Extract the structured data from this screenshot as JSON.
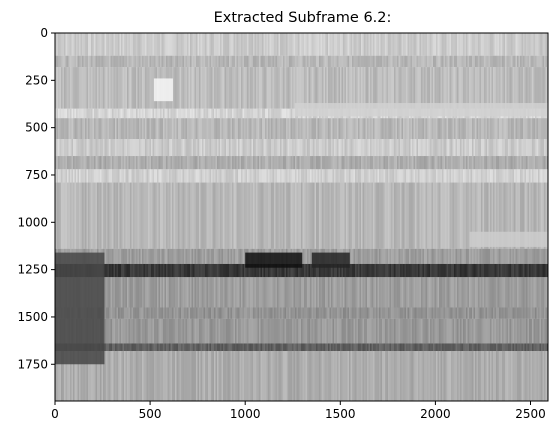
{
  "chart_data": {
    "type": "heatmap",
    "title": "Extracted Subframe 6.2:",
    "colormap": "gray",
    "xlim": [
      0,
      2592
    ],
    "ylim": [
      1944,
      0
    ],
    "x_ticks": [
      0,
      500,
      1000,
      1500,
      2000,
      2500
    ],
    "y_ticks": [
      0,
      250,
      500,
      750,
      1000,
      1250,
      1500,
      1750
    ],
    "bands": [
      {
        "y0": 0,
        "y1": 120,
        "gray": 0.8
      },
      {
        "y0": 120,
        "y1": 180,
        "gray": 0.72
      },
      {
        "y0": 180,
        "y1": 400,
        "gray": 0.74
      },
      {
        "y0": 400,
        "y1": 450,
        "gray": 0.84
      },
      {
        "y0": 450,
        "y1": 560,
        "gray": 0.72
      },
      {
        "y0": 560,
        "y1": 650,
        "gray": 0.8
      },
      {
        "y0": 650,
        "y1": 720,
        "gray": 0.68
      },
      {
        "y0": 720,
        "y1": 790,
        "gray": 0.82
      },
      {
        "y0": 790,
        "y1": 1140,
        "gray": 0.72
      },
      {
        "y0": 1140,
        "y1": 1220,
        "gray": 0.62
      },
      {
        "y0": 1220,
        "y1": 1290,
        "gray": 0.22
      },
      {
        "y0": 1290,
        "y1": 1450,
        "gray": 0.62
      },
      {
        "y0": 1450,
        "y1": 1510,
        "gray": 0.58
      },
      {
        "y0": 1510,
        "y1": 1640,
        "gray": 0.6
      },
      {
        "y0": 1640,
        "y1": 1680,
        "gray": 0.38
      },
      {
        "y0": 1680,
        "y1": 1944,
        "gray": 0.68
      }
    ],
    "dark_regions": [
      {
        "x0": 0,
        "x1": 260,
        "y0": 1160,
        "y1": 1750,
        "gray": 0.28
      },
      {
        "x0": 1000,
        "x1": 1300,
        "y0": 1160,
        "y1": 1240,
        "gray": 0.06
      },
      {
        "x0": 1350,
        "x1": 1550,
        "y0": 1160,
        "y1": 1240,
        "gray": 0.14
      }
    ],
    "light_regions": [
      {
        "x0": 520,
        "x1": 620,
        "y0": 240,
        "y1": 360,
        "gray": 0.97
      },
      {
        "x0": 1260,
        "x1": 2592,
        "y0": 370,
        "y1": 440,
        "gray": 0.82
      },
      {
        "x0": 2180,
        "x1": 2592,
        "y0": 1050,
        "y1": 1130,
        "gray": 0.8
      }
    ]
  }
}
